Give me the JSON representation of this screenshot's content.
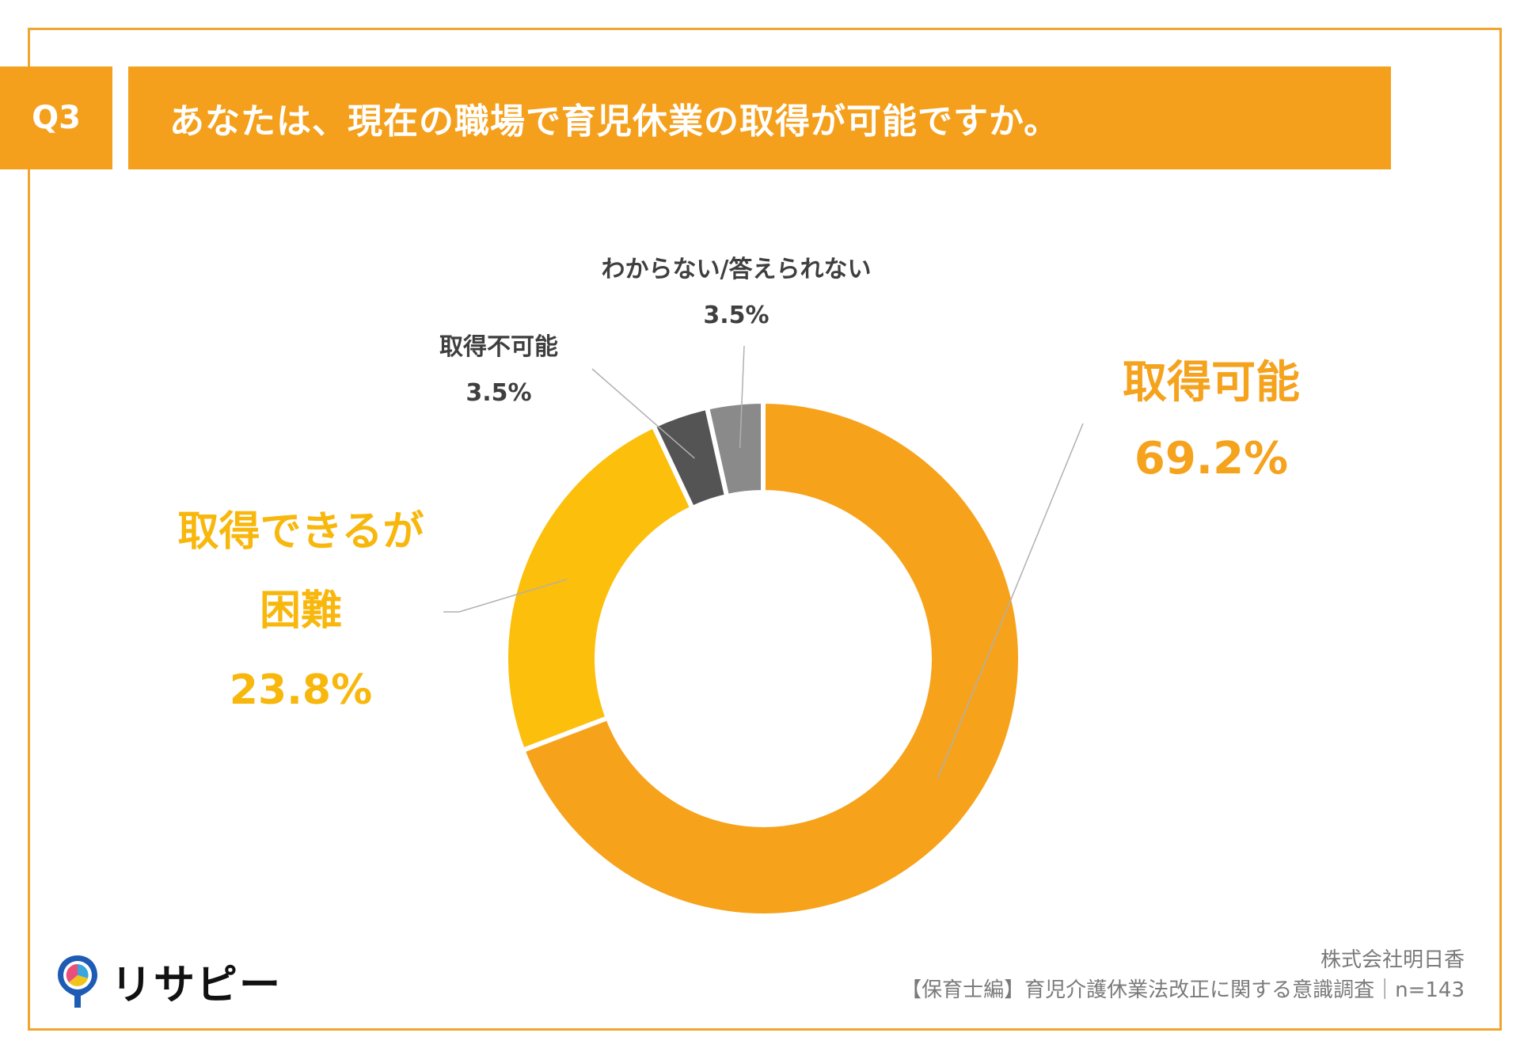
{
  "header": {
    "question_id": "Q3",
    "question": "あなたは、現在の職場で育児休業の取得が可能ですか。"
  },
  "chart_data": {
    "type": "pie",
    "donut": true,
    "categories": [
      "取得可能",
      "取得できるが困難",
      "取得不可能",
      "わからない/答えられない"
    ],
    "values": [
      69.2,
      23.8,
      3.5,
      3.5
    ],
    "unit": "%",
    "colors": [
      "#f7a21b",
      "#fbbf0c",
      "#545454",
      "#8a8a8a"
    ],
    "labels": [
      {
        "lines": [
          "取得可能"
        ],
        "value": "69.2%"
      },
      {
        "lines": [
          "取得できるが",
          "困難"
        ],
        "value": "23.8%"
      },
      {
        "lines": [
          "取得不可能"
        ],
        "value": "3.5%"
      },
      {
        "lines": [
          "わからない/答えられない"
        ],
        "value": "3.5%"
      }
    ]
  },
  "footer": {
    "company": "株式会社明日香",
    "survey": "【保育士編】育児介護休業法改正に関する意識調査｜n=143"
  },
  "logo": {
    "text": "リサピー",
    "icon": "map-pin-pie-icon",
    "colors": [
      "#1e5bb5",
      "#f0c419",
      "#e94f7a",
      "#3aa6dd"
    ]
  }
}
